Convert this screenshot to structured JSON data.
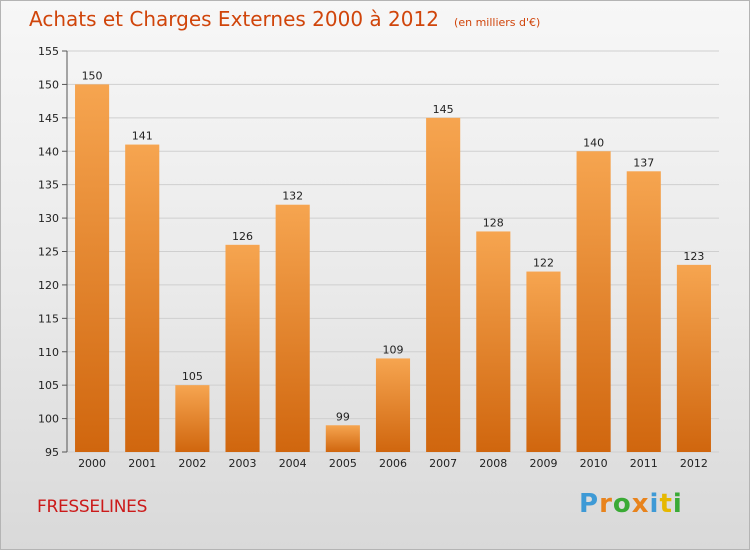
{
  "header": {
    "title": "Achats et Charges Externes 2000 à 2012",
    "subtitle": "(en milliers d'€)"
  },
  "footer": {
    "commune": "FRESSELINES",
    "logo": {
      "letters": [
        "P",
        "r",
        "o",
        "x",
        "i",
        "t",
        "i"
      ],
      "colors": [
        "#3e9ad6",
        "#e8831c",
        "#3aaa35",
        "#e8831c",
        "#3e9ad6",
        "#e6b800",
        "#3aaa35"
      ]
    }
  },
  "colors": {
    "accent": "#d0450b",
    "bar_top": "#f6a550",
    "bar_bottom": "#d0660e"
  },
  "chart_data": {
    "type": "bar",
    "title": "Achats et Charges Externes 2000 à 2012",
    "categories": [
      "2000",
      "2001",
      "2002",
      "2003",
      "2004",
      "2005",
      "2006",
      "2007",
      "2008",
      "2009",
      "2010",
      "2011",
      "2012"
    ],
    "values": [
      150,
      141,
      105,
      126,
      132,
      99,
      109,
      145,
      128,
      122,
      140,
      137,
      123
    ],
    "ylim": [
      95,
      155
    ],
    "yticks": [
      95,
      100,
      105,
      110,
      115,
      120,
      125,
      130,
      135,
      140,
      145,
      150,
      155
    ],
    "xlabel": "",
    "ylabel": "",
    "grid": true,
    "legend": "none"
  }
}
